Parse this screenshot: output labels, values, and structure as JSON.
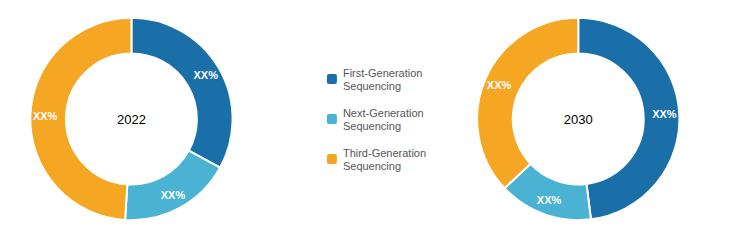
{
  "chart_data": [
    {
      "type": "pie",
      "title": "2022",
      "categories": [
        "First-Generation\nSequencing",
        "Next-Generation\nSequencing",
        "Third-Generation\nSequencing"
      ],
      "values": [
        33,
        18,
        49
      ],
      "value_labels": [
        "XX%",
        "XX%",
        "XX%"
      ],
      "colors": [
        "#1a6fa8",
        "#4ab3d4",
        "#f5a623"
      ],
      "data_labels": true,
      "legend": "center"
    },
    {
      "type": "pie",
      "title": "2030",
      "categories": [
        "First-Generation\nSequencing",
        "Next-Generation\nSequencing",
        "Third-Generation\nSequencing"
      ],
      "values": [
        48,
        15,
        37
      ],
      "value_labels": [
        "XX%",
        "XX%",
        "XX%"
      ],
      "colors": [
        "#1a6fa8",
        "#4ab3d4",
        "#f5a623"
      ],
      "data_labels": true
    }
  ]
}
